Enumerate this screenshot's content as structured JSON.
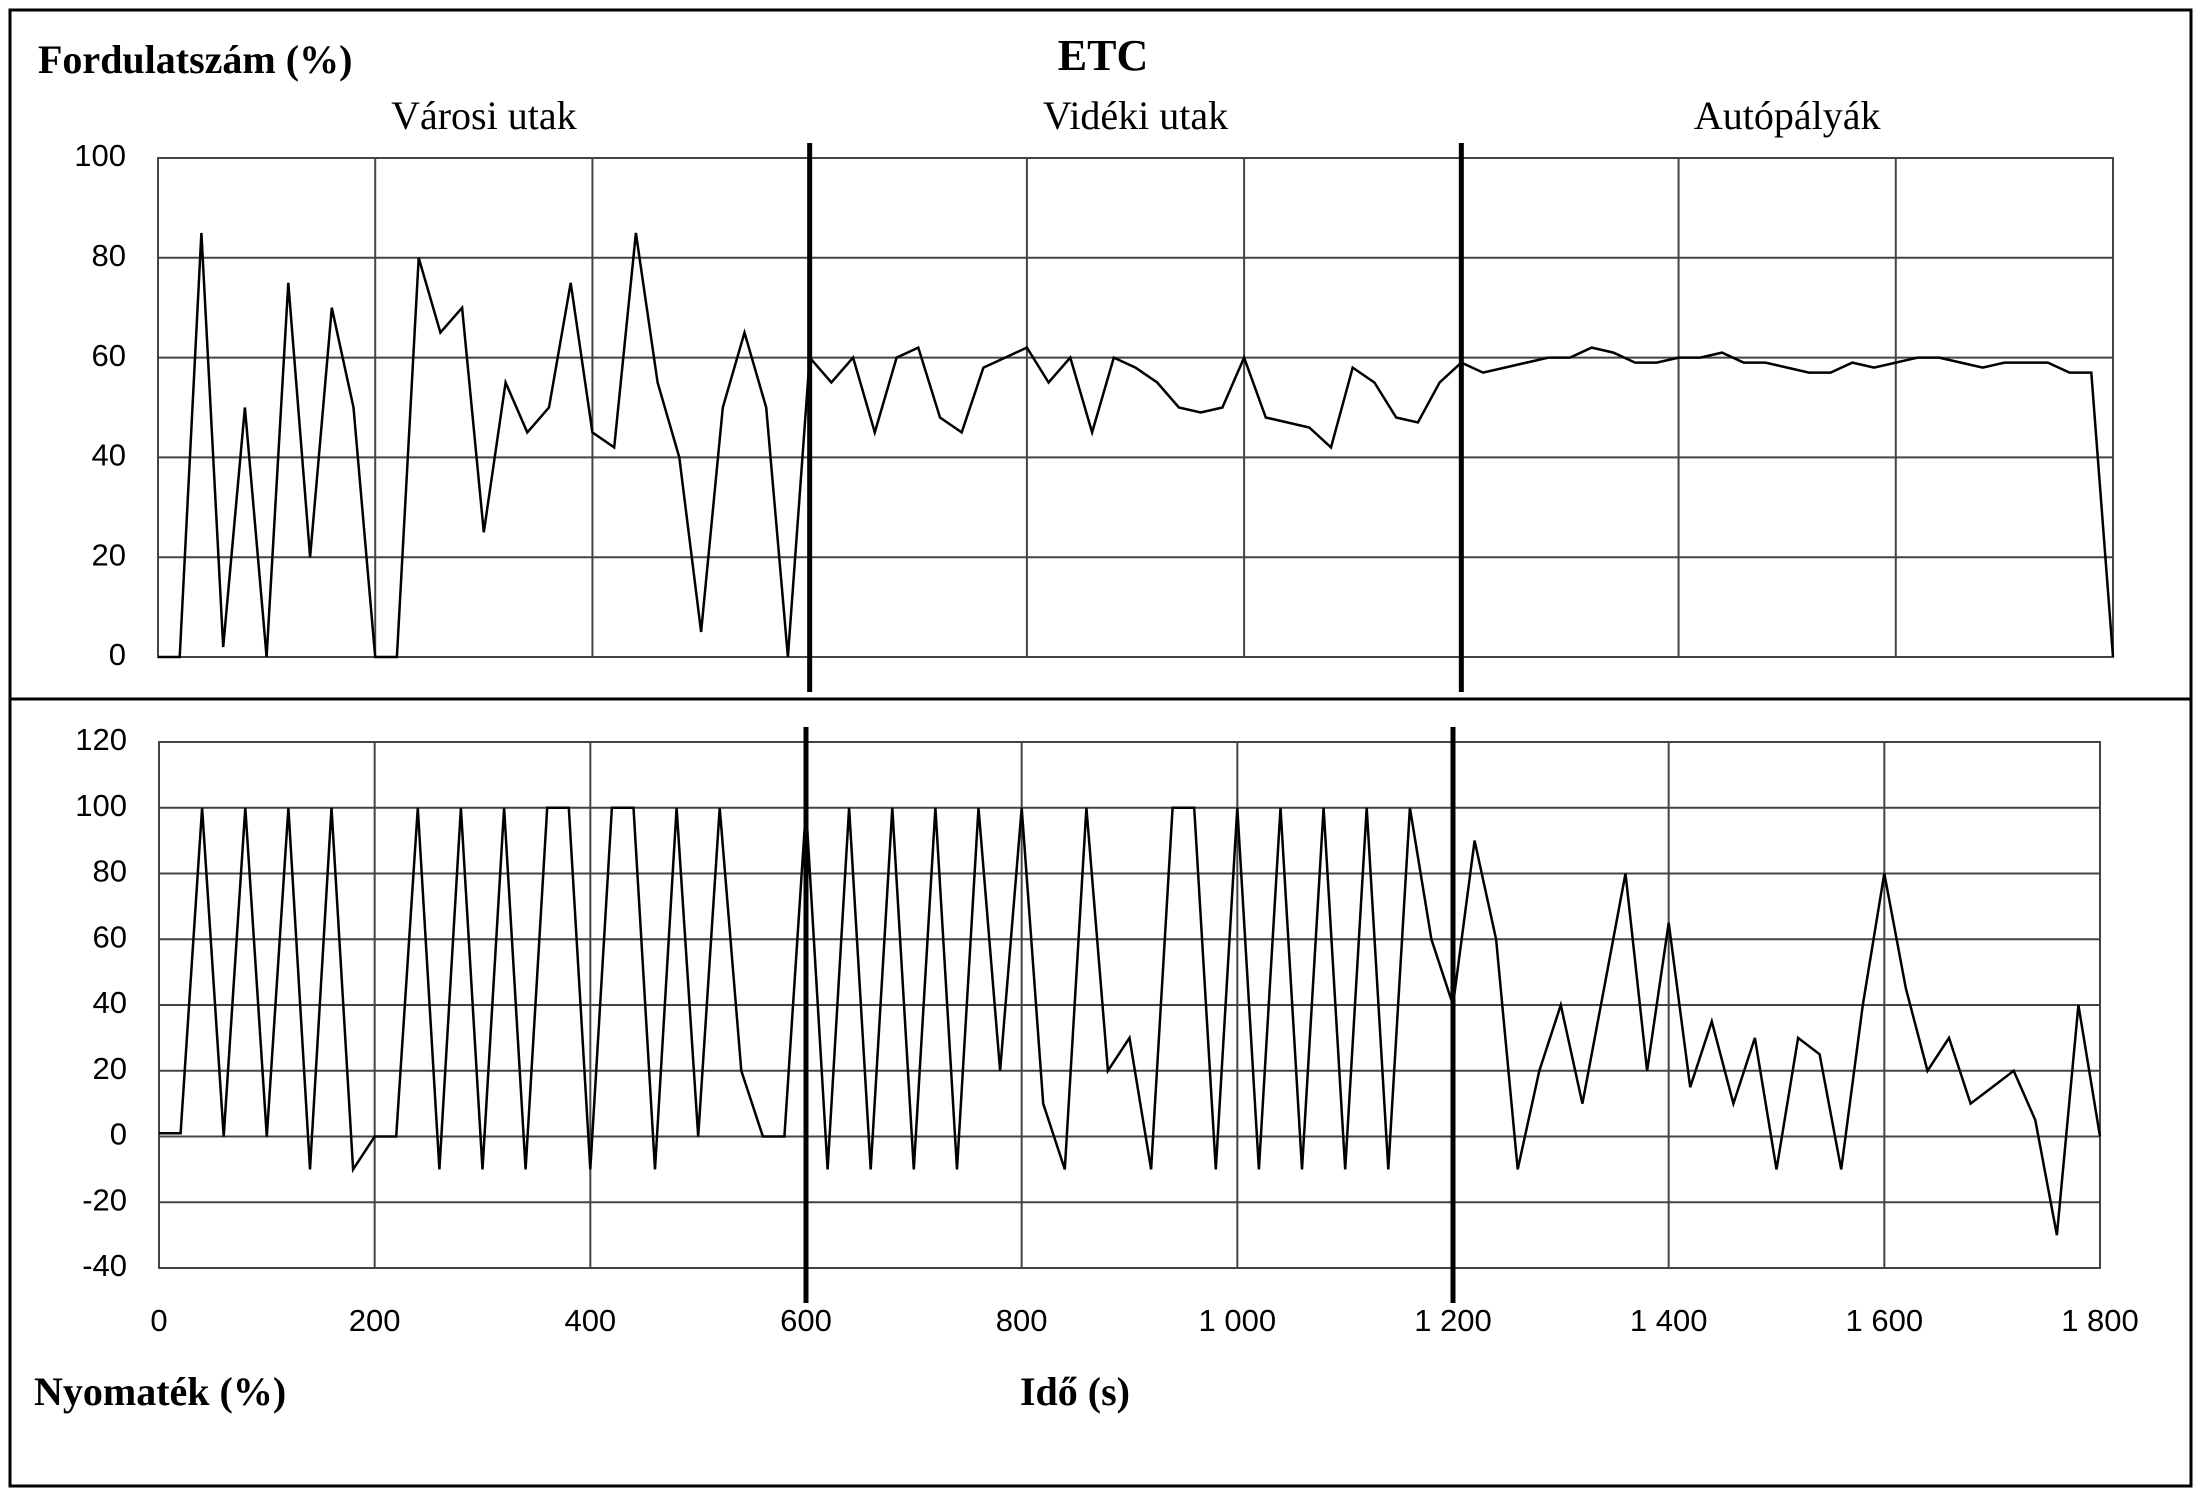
{
  "chart_data": [
    {
      "type": "line",
      "title": "ETC",
      "ylabel": "Fordulatszám (%)",
      "sections": [
        "Városi utak",
        "Vidéki utak",
        "Autópályák"
      ],
      "section_bounds": [
        600,
        1200
      ],
      "x": [
        0,
        20,
        40,
        60,
        80,
        100,
        120,
        140,
        160,
        180,
        200,
        220,
        240,
        260,
        280,
        300,
        320,
        340,
        360,
        380,
        400,
        420,
        440,
        460,
        480,
        500,
        520,
        540,
        560,
        580,
        600,
        620,
        640,
        660,
        680,
        700,
        720,
        740,
        760,
        780,
        800,
        820,
        840,
        860,
        880,
        900,
        920,
        940,
        960,
        980,
        1000,
        1020,
        1040,
        1060,
        1080,
        1100,
        1120,
        1140,
        1160,
        1180,
        1200,
        1220,
        1240,
        1260,
        1280,
        1300,
        1320,
        1340,
        1360,
        1380,
        1400,
        1420,
        1440,
        1460,
        1480,
        1500,
        1520,
        1540,
        1560,
        1580,
        1600,
        1620,
        1640,
        1660,
        1680,
        1700,
        1720,
        1740,
        1760,
        1780,
        1800
      ],
      "series": [
        {
          "color": "#000000",
          "values": [
            0,
            0,
            85,
            2,
            50,
            0,
            75,
            20,
            70,
            50,
            0,
            0,
            80,
            65,
            70,
            25,
            55,
            45,
            50,
            75,
            45,
            42,
            85,
            55,
            40,
            5,
            50,
            65,
            50,
            0,
            60,
            55,
            60,
            45,
            60,
            62,
            48,
            45,
            58,
            60,
            62,
            55,
            60,
            45,
            60,
            58,
            55,
            50,
            49,
            50,
            60,
            48,
            47,
            46,
            42,
            58,
            55,
            48,
            47,
            55,
            59,
            57,
            58,
            59,
            60,
            60,
            62,
            61,
            59,
            59,
            60,
            60,
            61,
            59,
            59,
            58,
            57,
            57,
            59,
            58,
            59,
            60,
            60,
            59,
            58,
            59,
            59,
            59,
            57,
            57,
            0
          ]
        }
      ],
      "xlim": [
        0,
        1800
      ],
      "xgrid": [
        0,
        200,
        400,
        600,
        800,
        1000,
        1200,
        1400,
        1600,
        1800
      ],
      "ylim": [
        0,
        100
      ],
      "yticks": [
        0,
        20,
        40,
        60,
        80,
        100
      ],
      "grid": true
    },
    {
      "type": "line",
      "ylabel": "Nyomaték (%)",
      "xlabel": "Idő (s)",
      "section_bounds": [
        600,
        1200
      ],
      "x": [
        0,
        20,
        40,
        60,
        80,
        100,
        120,
        140,
        160,
        180,
        200,
        220,
        240,
        260,
        280,
        300,
        320,
        340,
        360,
        380,
        400,
        420,
        440,
        460,
        480,
        500,
        520,
        540,
        560,
        580,
        600,
        620,
        640,
        660,
        680,
        700,
        720,
        740,
        760,
        780,
        800,
        820,
        840,
        860,
        880,
        900,
        920,
        940,
        960,
        980,
        1000,
        1020,
        1040,
        1060,
        1080,
        1100,
        1120,
        1140,
        1160,
        1180,
        1200,
        1220,
        1240,
        1260,
        1280,
        1300,
        1320,
        1340,
        1360,
        1380,
        1400,
        1420,
        1440,
        1460,
        1480,
        1500,
        1520,
        1540,
        1560,
        1580,
        1600,
        1620,
        1640,
        1660,
        1680,
        1700,
        1720,
        1740,
        1760,
        1780,
        1800
      ],
      "series": [
        {
          "color": "#000000",
          "values": [
            1,
            1,
            100,
            0,
            100,
            0,
            100,
            -10,
            100,
            -10,
            0,
            0,
            100,
            -10,
            100,
            -10,
            100,
            -10,
            100,
            100,
            -10,
            100,
            100,
            -10,
            100,
            0,
            100,
            20,
            0,
            0,
            100,
            -10,
            100,
            -10,
            100,
            -10,
            100,
            -10,
            100,
            20,
            100,
            10,
            -10,
            100,
            20,
            30,
            -10,
            100,
            100,
            -10,
            100,
            -10,
            100,
            -10,
            100,
            -10,
            100,
            -10,
            100,
            60,
            40,
            90,
            60,
            -10,
            20,
            40,
            10,
            45,
            80,
            20,
            65,
            15,
            35,
            10,
            30,
            -10,
            30,
            25,
            -10,
            40,
            80,
            45,
            20,
            30,
            10,
            15,
            20,
            5,
            -30,
            40,
            0
          ]
        }
      ],
      "xlim": [
        0,
        1800
      ],
      "xticks": [
        0,
        200,
        400,
        600,
        800,
        {
          "value": 1000,
          "label": "1 000"
        },
        {
          "value": 1200,
          "label": "1 200"
        },
        {
          "value": 1400,
          "label": "1 400"
        },
        {
          "value": 1600,
          "label": "1 600"
        },
        {
          "value": 1800,
          "label": "1 800"
        }
      ],
      "ylim": [
        -40,
        120
      ],
      "yticks": [
        -40,
        -20,
        0,
        20,
        40,
        60,
        80,
        100,
        120
      ],
      "grid": true
    }
  ]
}
